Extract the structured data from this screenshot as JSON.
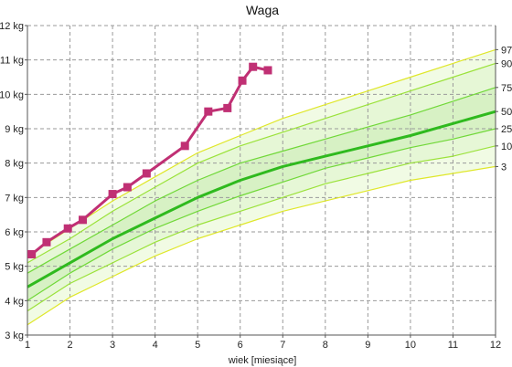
{
  "chart_data": {
    "type": "line",
    "title": "Waga",
    "xlabel": "wiek [miesiące]",
    "ylabel": "",
    "xlim": [
      1,
      12
    ],
    "ylim": [
      3,
      12
    ],
    "x_ticks": [
      "1",
      "2",
      "3",
      "4",
      "5",
      "6",
      "7",
      "8",
      "9",
      "10",
      "11",
      "12"
    ],
    "y_ticks": [
      "3 kg",
      "4 kg",
      "5 kg",
      "6 kg",
      "7 kg",
      "8 kg",
      "9 kg",
      "10 kg",
      "11 kg",
      "12 kg"
    ],
    "grid": true,
    "colors": {
      "band_outer": "#f1fbe4",
      "band_mid": "#e6f7d6",
      "band_inner": "#d7f1c4",
      "percentile_outer": "#dfe72a",
      "percentile_mid": "#9be23a",
      "percentile_inner": "#70d838",
      "median": "#2fba1e",
      "measurement": "#c03074",
      "grid": "#9a9a9a"
    },
    "percentiles": {
      "x": [
        1,
        2,
        3,
        4,
        5,
        6,
        7,
        8,
        9,
        10,
        11,
        12
      ],
      "p3": [
        3.3,
        4.1,
        4.7,
        5.3,
        5.8,
        6.2,
        6.6,
        6.9,
        7.2,
        7.5,
        7.7,
        7.9
      ],
      "p10": [
        3.7,
        4.5,
        5.1,
        5.7,
        6.2,
        6.6,
        7.0,
        7.4,
        7.7,
        8.0,
        8.2,
        8.5
      ],
      "p25": [
        4.0,
        4.8,
        5.5,
        6.1,
        6.6,
        7.05,
        7.45,
        7.85,
        8.15,
        8.45,
        8.7,
        9.0
      ],
      "p50": [
        4.4,
        5.1,
        5.8,
        6.4,
        7.0,
        7.5,
        7.9,
        8.2,
        8.5,
        8.8,
        9.15,
        9.5
      ],
      "p75": [
        4.8,
        5.5,
        6.2,
        6.9,
        7.5,
        8.0,
        8.35,
        8.7,
        9.05,
        9.4,
        9.8,
        10.2
      ],
      "p90": [
        5.1,
        5.8,
        6.6,
        7.3,
        8.0,
        8.5,
        8.9,
        9.3,
        9.7,
        10.1,
        10.5,
        10.9
      ],
      "p97": [
        5.3,
        6.1,
        6.9,
        7.6,
        8.3,
        8.8,
        9.3,
        9.7,
        10.1,
        10.5,
        10.9,
        11.3
      ]
    },
    "percentile_labels": [
      {
        "name": "97",
        "at": 11.3
      },
      {
        "name": "90",
        "at": 10.9
      },
      {
        "name": "75",
        "at": 10.2
      },
      {
        "name": "50",
        "at": 9.5
      },
      {
        "name": "25",
        "at": 9.0
      },
      {
        "name": "10",
        "at": 8.5
      },
      {
        "name": "3",
        "at": 7.9
      }
    ],
    "series": [
      {
        "x": [
          1.1,
          1.45,
          1.95,
          2.3,
          3.0,
          3.35,
          3.8,
          4.7,
          5.25,
          5.7,
          6.05,
          6.3,
          6.65
        ],
        "y": [
          5.35,
          5.7,
          6.1,
          6.35,
          7.1,
          7.3,
          7.7,
          8.5,
          9.5,
          9.6,
          10.4,
          10.8,
          10.7
        ]
      }
    ]
  }
}
